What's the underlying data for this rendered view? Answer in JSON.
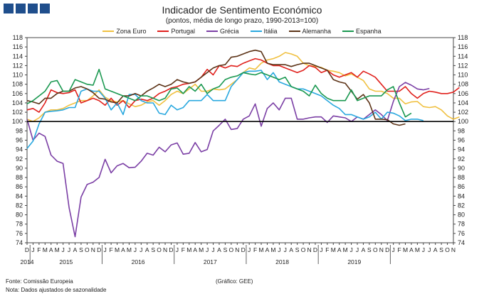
{
  "title": "Indicador de Sentimento Económico",
  "subtitle": "(pontos, média de longo prazo, 1990-2013=100)",
  "footer": {
    "source": "Fonte: Comissão Europeia",
    "note": "Nota: Dados ajustados de sazonalidade",
    "credit": "(Gráfico: GEE)"
  },
  "chart_data": {
    "type": "line",
    "title": "Indicador de Sentimento Económico",
    "ylim": [
      74,
      118
    ],
    "yticks": [
      74,
      76,
      78,
      80,
      82,
      84,
      86,
      88,
      90,
      92,
      94,
      96,
      98,
      100,
      102,
      104,
      106,
      108,
      110,
      112,
      114,
      116,
      118
    ],
    "reference_line": 100,
    "month_labels": [
      "D",
      "J",
      "F",
      "M",
      "A",
      "M",
      "J",
      "J",
      "A",
      "S",
      "O",
      "N",
      "D",
      "J",
      "F",
      "M",
      "A",
      "M",
      "J",
      "J",
      "A",
      "S",
      "O",
      "N",
      "D",
      "J",
      "F",
      "M",
      "A",
      "M",
      "J",
      "J",
      "A",
      "S",
      "O",
      "N",
      "D",
      "J",
      "F",
      "M",
      "A",
      "M",
      "J",
      "J",
      "A",
      "S",
      "O",
      "N",
      "D",
      "J",
      "F",
      "M",
      "A",
      "M",
      "J",
      "J",
      "A",
      "S",
      "O",
      "N",
      "D",
      "J",
      "F",
      "M",
      "A",
      "M",
      "J",
      "J",
      "A",
      "S",
      "O",
      "N"
    ],
    "year_labels": [
      {
        "label": "2014",
        "index": 0
      },
      {
        "label": "2015",
        "index": 6.5
      },
      {
        "label": "2016",
        "index": 18.5
      },
      {
        "label": "2017",
        "index": 30.5
      },
      {
        "label": "2018",
        "index": 42.5
      },
      {
        "label": "2019",
        "index": 54.5
      }
    ],
    "series": [
      {
        "name": "Zona Euro",
        "color": "#f0c040",
        "values": [
          100.5,
          100,
          100.8,
          102,
          102.5,
          102.5,
          102.8,
          103.5,
          104,
          104.5,
          104.5,
          105.5,
          106.8,
          105.2,
          104.5,
          104.2,
          104.5,
          103.8,
          103.2,
          103.5,
          104.2,
          104.5,
          103.5,
          104.5,
          105.8,
          106.5,
          106,
          107,
          108,
          106.5,
          106.5,
          107,
          106.8,
          107,
          108,
          109,
          110.5,
          111.5,
          111.2,
          112.5,
          113.2,
          113.5,
          114,
          114.8,
          114.5,
          114,
          112.5,
          112,
          111.8,
          111.6,
          111,
          110.8,
          110.5,
          109.8,
          110.2,
          109.5,
          108.8,
          107,
          106.5,
          106.5,
          106,
          105,
          105,
          103.8,
          104.2,
          104.3,
          103.2,
          103,
          103.2,
          102.5,
          101.2,
          100.5,
          101
        ]
      },
      {
        "name": "Portugal",
        "color": "#e0201c",
        "values": [
          102.5,
          102.8,
          102,
          104,
          106.8,
          106.2,
          106,
          106.2,
          106.8,
          104,
          104.5,
          105,
          104.5,
          103.5,
          105,
          103.5,
          104.5,
          103,
          104.5,
          104.8,
          104.5,
          105,
          106,
          106.5,
          107.2,
          107.5,
          108,
          108.2,
          108.5,
          109.5,
          111.2,
          110,
          112,
          111.5,
          112,
          111.8,
          112.5,
          113,
          113.5,
          113.2,
          112.5,
          112,
          112,
          111.5,
          111,
          110.5,
          111,
          112,
          111.6,
          110.5,
          111,
          110,
          109.5,
          110,
          110.5,
          109.5,
          110.8,
          110.2,
          109.5,
          108,
          106.5,
          106.5,
          106.5,
          107.5,
          106,
          105,
          106,
          106.5,
          106.3,
          106,
          106,
          106.3,
          107.3
        ]
      },
      {
        "name": "Grécia",
        "color": "#7b3fa5",
        "values": [
          100.5,
          96,
          97.5,
          96.8,
          92.8,
          91.5,
          91,
          81.5,
          75.3,
          83.8,
          86.5,
          87,
          88,
          91.9,
          89,
          90.5,
          91,
          90.1,
          90.2,
          91.5,
          93.2,
          92.8,
          94.5,
          93.5,
          95,
          95.4,
          93,
          93.2,
          95.5,
          93.5,
          94,
          98,
          99.2,
          100.5,
          98.3,
          98.5,
          100.5,
          101.2,
          103.8,
          99,
          102.8,
          104,
          102.5,
          105,
          105,
          100.5,
          100.5,
          100.8,
          101,
          101,
          99.8,
          101.2,
          101,
          100.8,
          100,
          101,
          100.5,
          101.5,
          102.5,
          101.5,
          100.2,
          104.3,
          107.5,
          108.4,
          107.8,
          107,
          106.8,
          107.1
        ]
      },
      {
        "name": "Itália",
        "color": "#29a8df",
        "values": [
          94.2,
          95.8,
          99.5,
          102,
          102.2,
          102.3,
          102.5,
          103,
          103,
          106.5,
          107,
          106.5,
          106.5,
          105,
          102.5,
          104,
          101.5,
          105.8,
          105.8,
          104.5,
          104,
          104,
          101.8,
          101.5,
          103.5,
          102.5,
          103,
          104.5,
          104.5,
          104.5,
          105.8,
          104.5,
          104.5,
          104.5,
          107.5,
          109,
          110.5,
          110.8,
          110.8,
          111,
          109,
          110.5,
          108.5,
          108,
          107.5,
          107,
          107,
          106.5,
          106,
          105.5,
          104.5,
          103.5,
          102.8,
          101.5,
          101.5,
          101,
          100.5,
          101,
          102,
          100.5,
          102,
          101.8,
          101.2,
          100.2,
          100.5,
          100.5,
          100.2
        ]
      },
      {
        "name": "Alemanha",
        "color": "#5c3317",
        "values": [
          104.5,
          104.2,
          103.8,
          105,
          105,
          106,
          106.5,
          106.5,
          107.2,
          107.5,
          107,
          106.2,
          105,
          104.8,
          104.2,
          104,
          105.5,
          105.5,
          106,
          105.5,
          106.5,
          107.2,
          108,
          107.5,
          108,
          109,
          108.5,
          108.2,
          108.5,
          109.5,
          110.5,
          111.5,
          112,
          112.2,
          113.8,
          114,
          114.5,
          115,
          115.3,
          115,
          112.5,
          112.2,
          112.2,
          112.2,
          111.8,
          112.2,
          112.5,
          112.5,
          112,
          111.5,
          111,
          109,
          108.5,
          108.2,
          106.5,
          104.8,
          105.8,
          104,
          100.5,
          100.5,
          100.4,
          99.5,
          99.2,
          99.5
        ]
      },
      {
        "name": "Espanha",
        "color": "#1a9850",
        "values": [
          103.8,
          104.5,
          105.5,
          106.5,
          108.5,
          108.8,
          106.5,
          106.5,
          109,
          108.5,
          108,
          107.8,
          111.2,
          107,
          106.5,
          106,
          105.5,
          105,
          104.5,
          105.5,
          105.5,
          105,
          104.5,
          105,
          107,
          107.2,
          106,
          107.5,
          106.5,
          108,
          106,
          107,
          107.5,
          109,
          109.5,
          109.8,
          110.5,
          110.2,
          110,
          110.5,
          110,
          109.5,
          109,
          109.5,
          107.5,
          107,
          106.5,
          105.5,
          107.8,
          106,
          105,
          104.5,
          104.5,
          104.5,
          106.8,
          104.5,
          105,
          105.5,
          105.5,
          105.5,
          106.8,
          107.5,
          104,
          101,
          101.8
        ]
      }
    ]
  }
}
